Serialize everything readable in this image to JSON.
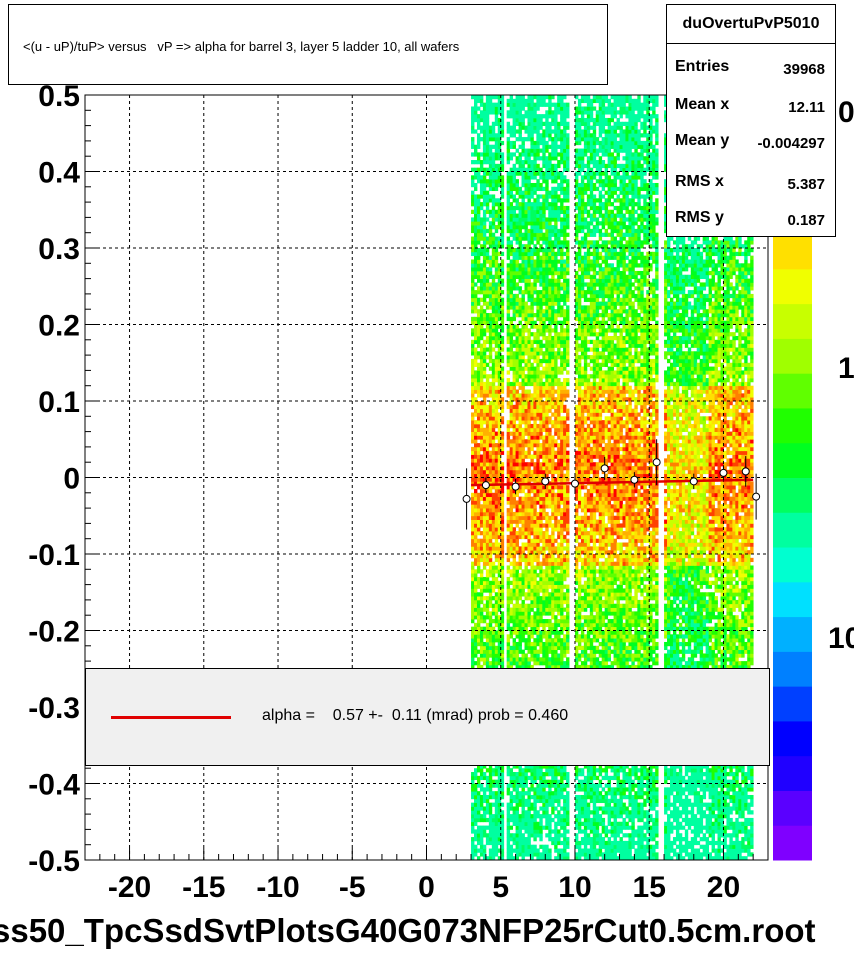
{
  "title": "<(u - uP)/tuP> versus   vP => alpha for barrel 3, layer 5 ladder 10, all wafers",
  "stats": {
    "name": "duOvertuPvP5010",
    "rows": [
      {
        "label": "Entries",
        "value": "39968"
      },
      {
        "label": "Mean x",
        "value": "12.11"
      },
      {
        "label": "Mean y",
        "value": "-0.004297"
      },
      {
        "label": "RMS x",
        "value": "5.387"
      },
      {
        "label": "RMS y",
        "value": "0.187"
      }
    ]
  },
  "legend": {
    "text": "alpha =    0.57 +-  0.11 (mrad) prob = 0.460",
    "line_color": "#e00000"
  },
  "file_label": "ss50_TpcSsdSvtPlotsG40G073NFP25rCut0.5cm.root",
  "palette_labels": [
    "0",
    "1",
    "10"
  ],
  "chart_data": {
    "type": "heatmap",
    "xlim": [
      -23,
      23
    ],
    "ylim": [
      -0.5,
      0.5
    ],
    "x_ticks": [
      "-20",
      "-15",
      "-10",
      "-5",
      "0",
      "5",
      "10",
      "15",
      "20"
    ],
    "y_ticks": [
      "0.5",
      "0.4",
      "0.3",
      "0.2",
      "0.1",
      "0",
      "-0.1",
      "-0.2",
      "-0.3",
      "-0.4",
      "-0.5"
    ],
    "grid": true,
    "data_x_range": [
      3,
      22
    ],
    "fit": {
      "y_at_x_min": -0.01,
      "y_at_x_max": -0.003
    },
    "profile_points": [
      {
        "x": 2.7,
        "y": -0.028,
        "err": 0.04
      },
      {
        "x": 4.0,
        "y": -0.01,
        "err": 0.01
      },
      {
        "x": 6.0,
        "y": -0.012,
        "err": 0.01
      },
      {
        "x": 8.0,
        "y": -0.005,
        "err": 0.01
      },
      {
        "x": 10.0,
        "y": -0.008,
        "err": 0.01
      },
      {
        "x": 12.0,
        "y": 0.012,
        "err": 0.015
      },
      {
        "x": 14.0,
        "y": -0.003,
        "err": 0.01
      },
      {
        "x": 15.5,
        "y": 0.02,
        "err": 0.03
      },
      {
        "x": 18.0,
        "y": -0.005,
        "err": 0.01
      },
      {
        "x": 20.0,
        "y": 0.006,
        "err": 0.01
      },
      {
        "x": 21.5,
        "y": 0.008,
        "err": 0.02
      },
      {
        "x": 22.2,
        "y": -0.025,
        "err": 0.03
      }
    ],
    "colors": {
      "palette": [
        "#7f00ff",
        "#5a00ff",
        "#2000ff",
        "#0000ff",
        "#0040ff",
        "#0080ff",
        "#00b0ff",
        "#00e0ff",
        "#00ffd0",
        "#00ffa0",
        "#00ff60",
        "#00ff20",
        "#20ff00",
        "#60ff00",
        "#a0ff00",
        "#c8ff00",
        "#f0ff00",
        "#ffe000",
        "#ffb000",
        "#ff8000",
        "#ff4000",
        "#ff0000"
      ]
    }
  }
}
